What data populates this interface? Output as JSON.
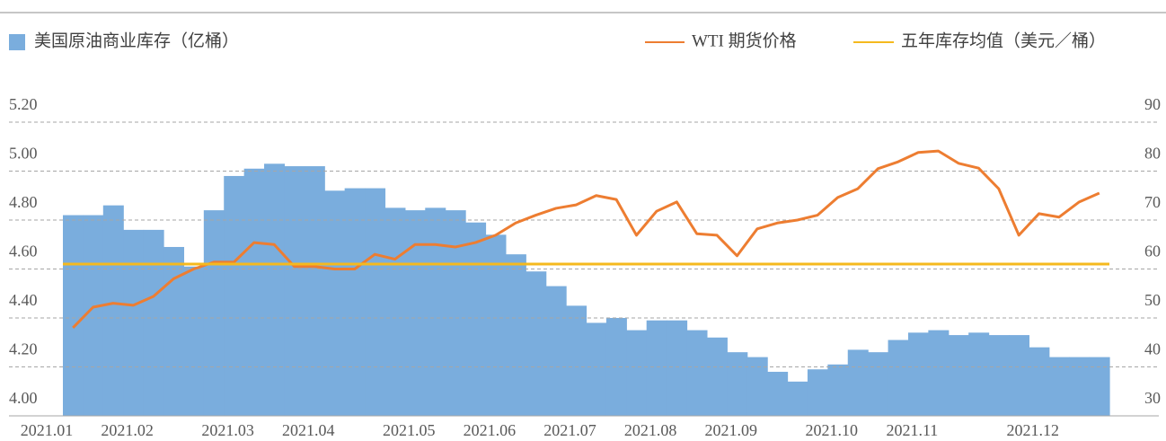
{
  "chart_data": {
    "type": "bar",
    "categories": [
      "2021.01",
      null,
      null,
      null,
      "2021.02",
      null,
      null,
      null,
      null,
      "2021.03",
      null,
      null,
      null,
      "2021.04",
      null,
      null,
      null,
      null,
      "2021.05",
      null,
      null,
      null,
      "2021.06",
      null,
      null,
      null,
      "2021.07",
      null,
      null,
      null,
      "2021.08",
      null,
      null,
      null,
      "2021.09",
      null,
      null,
      null,
      null,
      "2021.10",
      null,
      null,
      null,
      "2021.11",
      null,
      null,
      null,
      null,
      null,
      "2021.12",
      null,
      null
    ],
    "series": [
      {
        "name": "美国原油商业库存（亿桶）",
        "type": "bar",
        "color": "#7aaddd",
        "values": [
          4.82,
          4.82,
          4.86,
          4.76,
          4.76,
          4.69,
          4.61,
          4.84,
          4.98,
          5.01,
          5.03,
          5.02,
          5.02,
          4.92,
          4.93,
          4.93,
          4.85,
          4.84,
          4.85,
          4.84,
          4.79,
          4.74,
          4.66,
          4.59,
          4.53,
          4.45,
          4.38,
          4.4,
          4.35,
          4.39,
          4.39,
          4.35,
          4.32,
          4.26,
          4.24,
          4.18,
          4.14,
          4.19,
          4.21,
          4.27,
          4.26,
          4.31,
          4.34,
          4.35,
          4.33,
          4.34,
          4.33,
          4.33,
          4.28,
          4.24,
          4.24,
          4.24
        ]
      },
      {
        "name": "WTI 期货价格",
        "type": "line",
        "axis": "y2",
        "color": "#ed7d31",
        "values": [
          48,
          52.2,
          53,
          52.6,
          54.4,
          58,
          60,
          61.4,
          61.4,
          65.4,
          65,
          60.5,
          60.5,
          60,
          60,
          63,
          62,
          65,
          65,
          64.5,
          65.4,
          66.9,
          69.4,
          71,
          72.4,
          73.1,
          75,
          74.2,
          66.9,
          71.8,
          73.7,
          67.2,
          66.9,
          62.7,
          68.2,
          69.4,
          70,
          71,
          74.6,
          76.4,
          80.5,
          81.9,
          83.8,
          84.1,
          81.6,
          80.6,
          76.4,
          66.9,
          71.3,
          70.6,
          73.7,
          75.5
        ]
      },
      {
        "name": "五年库存均值（美元／桶）",
        "type": "hline",
        "color": "#f5b91e",
        "value": 4.62
      }
    ],
    "ylim": [
      4.0,
      5.2
    ],
    "yticks": [
      {
        "value": 4.0,
        "label": "4.00"
      },
      {
        "value": 4.2,
        "label": "4.20"
      },
      {
        "value": 4.4,
        "label": "4.40"
      },
      {
        "value": 4.6,
        "label": "4.60"
      },
      {
        "value": 4.8,
        "label": "4.80"
      },
      {
        "value": 5.0,
        "label": "5.00"
      },
      {
        "value": 5.2,
        "label": "5.20"
      }
    ],
    "y2lim": [
      30,
      90
    ],
    "y2ticks": [
      30,
      40,
      50,
      60,
      70,
      80,
      90
    ],
    "grid": true
  }
}
